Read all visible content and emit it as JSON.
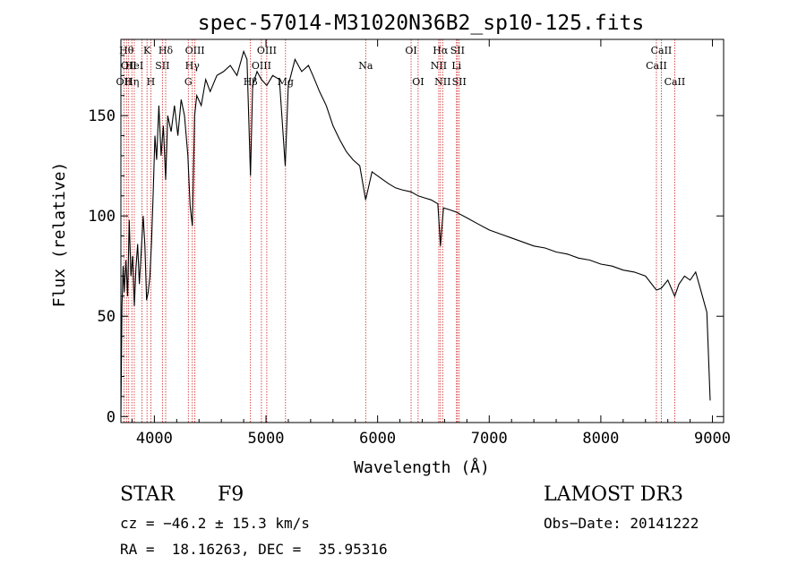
{
  "chart_data": {
    "type": "line",
    "title": "spec-57014-M31020N36B2_sp10-125.fits",
    "xlabel": "Wavelength (Å)",
    "ylabel": "Flux (relative)",
    "xlim": [
      3700,
      9100
    ],
    "ylim": [
      -3,
      188
    ],
    "xticks": [
      4000,
      5000,
      6000,
      7000,
      8000,
      9000
    ],
    "yticks": [
      0,
      50,
      100,
      150
    ],
    "grid": false,
    "legend": "none",
    "line_color": "#000000",
    "marker_color": "#d02020",
    "series": [
      {
        "points": [
          [
            3700,
            0
          ],
          [
            3710,
            55
          ],
          [
            3720,
            75
          ],
          [
            3730,
            62
          ],
          [
            3745,
            78
          ],
          [
            3760,
            60
          ],
          [
            3775,
            98
          ],
          [
            3790,
            70
          ],
          [
            3805,
            80
          ],
          [
            3820,
            55
          ],
          [
            3835,
            74
          ],
          [
            3850,
            86
          ],
          [
            3865,
            66
          ],
          [
            3880,
            80
          ],
          [
            3900,
            100
          ],
          [
            3915,
            85
          ],
          [
            3930,
            58
          ],
          [
            3945,
            62
          ],
          [
            3960,
            70
          ],
          [
            3975,
            88
          ],
          [
            3990,
            112
          ],
          [
            4005,
            140
          ],
          [
            4020,
            128
          ],
          [
            4040,
            155
          ],
          [
            4060,
            130
          ],
          [
            4080,
            145
          ],
          [
            4101,
            118
          ],
          [
            4120,
            150
          ],
          [
            4150,
            142
          ],
          [
            4180,
            155
          ],
          [
            4210,
            140
          ],
          [
            4240,
            158
          ],
          [
            4270,
            150
          ],
          [
            4300,
            130
          ],
          [
            4320,
            105
          ],
          [
            4340,
            95
          ],
          [
            4360,
            150
          ],
          [
            4380,
            160
          ],
          [
            4420,
            155
          ],
          [
            4460,
            168
          ],
          [
            4500,
            162
          ],
          [
            4560,
            170
          ],
          [
            4620,
            172
          ],
          [
            4680,
            175
          ],
          [
            4740,
            170
          ],
          [
            4800,
            182
          ],
          [
            4830,
            178
          ],
          [
            4861,
            120
          ],
          [
            4880,
            165
          ],
          [
            4920,
            172
          ],
          [
            4959,
            168
          ],
          [
            5007,
            165
          ],
          [
            5060,
            170
          ],
          [
            5120,
            168
          ],
          [
            5172,
            125
          ],
          [
            5200,
            165
          ],
          [
            5260,
            178
          ],
          [
            5320,
            172
          ],
          [
            5380,
            175
          ],
          [
            5420,
            170
          ],
          [
            5480,
            162
          ],
          [
            5540,
            155
          ],
          [
            5600,
            145
          ],
          [
            5660,
            138
          ],
          [
            5720,
            132
          ],
          [
            5780,
            128
          ],
          [
            5840,
            125
          ],
          [
            5893,
            108
          ],
          [
            5950,
            122
          ],
          [
            6000,
            120
          ],
          [
            6050,
            118
          ],
          [
            6100,
            116
          ],
          [
            6160,
            114
          ],
          [
            6220,
            113
          ],
          [
            6300,
            112
          ],
          [
            6363,
            110
          ],
          [
            6420,
            109
          ],
          [
            6480,
            108
          ],
          [
            6540,
            106
          ],
          [
            6563,
            85
          ],
          [
            6590,
            104
          ],
          [
            6650,
            103
          ],
          [
            6700,
            102
          ],
          [
            6800,
            99
          ],
          [
            6900,
            96
          ],
          [
            7000,
            93
          ],
          [
            7100,
            91
          ],
          [
            7200,
            89
          ],
          [
            7300,
            87
          ],
          [
            7400,
            85
          ],
          [
            7500,
            84
          ],
          [
            7600,
            82
          ],
          [
            7700,
            81
          ],
          [
            7800,
            79
          ],
          [
            7900,
            78
          ],
          [
            8000,
            76
          ],
          [
            8100,
            75
          ],
          [
            8200,
            73
          ],
          [
            8300,
            72
          ],
          [
            8400,
            70
          ],
          [
            8498,
            63
          ],
          [
            8542,
            64
          ],
          [
            8600,
            68
          ],
          [
            8662,
            60
          ],
          [
            8700,
            66
          ],
          [
            8750,
            70
          ],
          [
            8800,
            68
          ],
          [
            8850,
            72
          ],
          [
            8900,
            62
          ],
          [
            8950,
            52
          ],
          [
            8980,
            8
          ]
        ]
      }
    ],
    "line_markers": [
      {
        "wave": 3727,
        "label": "OII",
        "row": 2
      },
      {
        "wave": 3750,
        "label": "Hθ",
        "row": 0
      },
      {
        "wave": 3770,
        "label": "OII",
        "row": 1
      },
      {
        "wave": 3798,
        "label": "Hη",
        "row": 2
      },
      {
        "wave": 3820,
        "label": "HeI",
        "row": 1
      },
      {
        "wave": 3889,
        "label": "",
        "row": 0
      },
      {
        "wave": 3934,
        "label": "K",
        "row": 0
      },
      {
        "wave": 3968,
        "label": "H",
        "row": 2
      },
      {
        "wave": 4072,
        "label": "SII",
        "row": 1
      },
      {
        "wave": 4101,
        "label": "Hδ",
        "row": 0
      },
      {
        "wave": 4304,
        "label": "G",
        "row": 2
      },
      {
        "wave": 4340,
        "label": "Hγ",
        "row": 1
      },
      {
        "wave": 4363,
        "label": "OIII",
        "row": 0
      },
      {
        "wave": 4861,
        "label": "Hβ",
        "row": 2
      },
      {
        "wave": 4959,
        "label": "OIII",
        "row": 1
      },
      {
        "wave": 5007,
        "label": "OIII",
        "row": 0
      },
      {
        "wave": 5175,
        "label": "Mg",
        "row": 2
      },
      {
        "wave": 5893,
        "label": "Na",
        "row": 1
      },
      {
        "wave": 6300,
        "label": "OI",
        "row": 0
      },
      {
        "wave": 6363,
        "label": "OI",
        "row": 2
      },
      {
        "wave": 6548,
        "label": "NII",
        "row": 1
      },
      {
        "wave": 6563,
        "label": "Hα",
        "row": 0
      },
      {
        "wave": 6583,
        "label": "NII",
        "row": 2
      },
      {
        "wave": 6707,
        "label": "Li",
        "row": 1
      },
      {
        "wave": 6716,
        "label": "SII",
        "row": 0
      },
      {
        "wave": 6731,
        "label": "SII",
        "row": 2
      },
      {
        "wave": 8498,
        "label": "CaII",
        "row": 1
      },
      {
        "wave": 8542,
        "label": "CaII",
        "row": 0
      },
      {
        "wave": 8662,
        "label": "CaII",
        "row": 2
      }
    ]
  },
  "info": {
    "object_class": "STAR",
    "subclass": "F9",
    "survey": "LAMOST DR3",
    "redshift": "cz = −46.2 ± 15.3 km/s",
    "obs_date": "Obs−Date: 20141222",
    "coords": "RA =  18.16263, DEC =  35.95316"
  }
}
